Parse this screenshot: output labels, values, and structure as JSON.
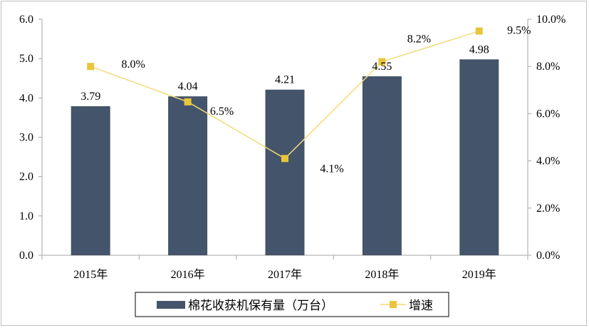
{
  "chart_data": {
    "type": "bar+line",
    "categories": [
      "2015年",
      "2016年",
      "2017年",
      "2018年",
      "2019年"
    ],
    "series": [
      {
        "name": "棉花收获机保有量（万台）",
        "type": "bar",
        "axis": "left",
        "values": [
          3.79,
          4.04,
          4.21,
          4.55,
          4.98
        ],
        "labels": [
          "3.79",
          "4.04",
          "4.21",
          "4.55",
          "4.98"
        ],
        "color": "#44546a"
      },
      {
        "name": "增速",
        "type": "line",
        "axis": "right",
        "values": [
          8.0,
          6.5,
          4.1,
          8.2,
          9.5
        ],
        "labels": [
          "8.0%",
          "6.5%",
          "4.1%",
          "8.2%",
          "9.5%"
        ],
        "color": "#e8c53a",
        "line_color": "#f0dc78"
      }
    ],
    "y_left": {
      "min": 0,
      "max": 6,
      "step": 1,
      "ticks": [
        "0.0",
        "1.0",
        "2.0",
        "3.0",
        "4.0",
        "5.0",
        "6.0"
      ]
    },
    "y_right": {
      "min": 0,
      "max": 10,
      "step": 2,
      "ticks": [
        "0.0%",
        "2.0%",
        "4.0%",
        "6.0%",
        "8.0%",
        "10.0%"
      ]
    },
    "grid": false,
    "legend_position": "bottom"
  }
}
